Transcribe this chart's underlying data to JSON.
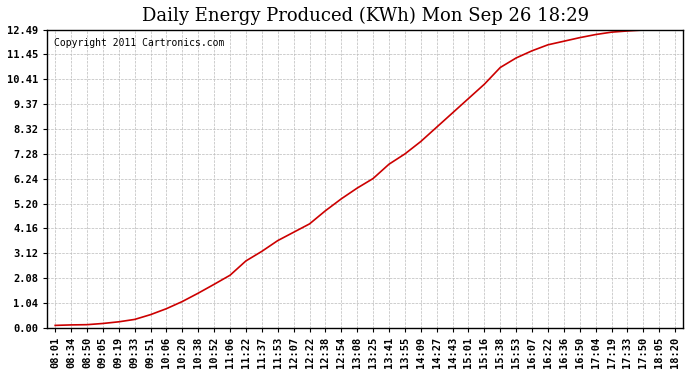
{
  "title": "Daily Energy Produced (KWh) Mon Sep 26 18:29",
  "copyright_text": "Copyright 2011 Cartronics.com",
  "line_color": "#cc0000",
  "bg_color": "#ffffff",
  "grid_color": "#bbbbbb",
  "y_ticks": [
    0.0,
    1.04,
    2.08,
    3.12,
    4.16,
    5.2,
    6.24,
    7.28,
    8.32,
    9.37,
    10.41,
    11.45,
    12.49
  ],
  "x_labels": [
    "08:01",
    "08:34",
    "08:50",
    "09:05",
    "09:19",
    "09:33",
    "09:51",
    "10:06",
    "10:20",
    "10:38",
    "10:52",
    "11:06",
    "11:22",
    "11:37",
    "11:53",
    "12:07",
    "12:22",
    "12:38",
    "12:54",
    "13:08",
    "13:25",
    "13:41",
    "13:55",
    "14:09",
    "14:27",
    "14:43",
    "15:01",
    "15:16",
    "15:38",
    "15:53",
    "16:07",
    "16:22",
    "16:36",
    "16:50",
    "17:04",
    "17:19",
    "17:33",
    "17:50",
    "18:05",
    "18:20"
  ],
  "y_values": [
    0.1,
    0.12,
    0.13,
    0.18,
    0.25,
    0.35,
    0.55,
    0.8,
    1.1,
    1.45,
    1.82,
    2.2,
    2.8,
    3.2,
    3.65,
    4.0,
    4.35,
    4.9,
    5.4,
    5.85,
    6.25,
    6.85,
    7.28,
    7.8,
    8.4,
    9.0,
    9.6,
    10.2,
    10.9,
    11.3,
    11.6,
    11.85,
    12.0,
    12.15,
    12.28,
    12.38,
    12.43,
    12.47,
    12.48,
    12.49
  ],
  "ylim": [
    0.0,
    12.49
  ],
  "title_fontsize": 13,
  "tick_fontsize": 7.5,
  "copyright_fontsize": 7
}
